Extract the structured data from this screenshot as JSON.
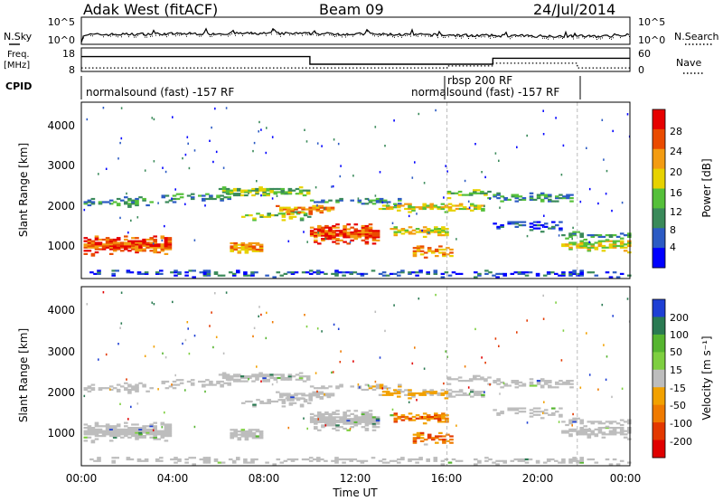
{
  "header": {
    "title": "Adak West (fitACF)",
    "beam": "Beam 09",
    "date": "24/Jul/2014"
  },
  "strip_labels": {
    "nsky": "N.Sky",
    "nsearch": "N.Search",
    "freq": "Freq.",
    "freq_unit": "[MHz]",
    "nave": "Nave",
    "cpid": "CPID"
  },
  "cpid_labels": [
    "normalsound (fast) -157 RF",
    "rbsp 200 RF",
    "normalsound (fast) -157 RF"
  ],
  "chart_data": [
    {
      "type": "line",
      "name": "noise",
      "yticks_left": [
        "10^5",
        "10^0"
      ],
      "yticks_right": [
        "10^5",
        "10^0"
      ]
    },
    {
      "type": "line",
      "name": "freq-nave",
      "yticks_left": [
        "18",
        "8"
      ],
      "yticks_right": [
        "60",
        "0"
      ],
      "freq_series": {
        "x": [
          0,
          10,
          10,
          18,
          18,
          24
        ],
        "y": [
          15,
          15,
          11.2,
          11.2,
          14.2,
          14.2
        ]
      },
      "nave_series": {
        "x": [
          0,
          10,
          10,
          16,
          16,
          18,
          18,
          21.7,
          21.7,
          24
        ],
        "y": [
          8,
          8,
          8,
          8,
          14,
          14,
          22,
          22,
          8,
          8
        ]
      }
    },
    {
      "type": "heatmap",
      "name": "power",
      "ylabel": "Slant Range [km]",
      "yticks": [
        "1000",
        "2000",
        "3000",
        "4000"
      ],
      "ylim": [
        180,
        4600
      ],
      "colorbar_label": "Power [dB]",
      "colorbar_ticks": [
        "4",
        "8",
        "12",
        "16",
        "20",
        "24",
        "28"
      ],
      "colorbar_range": [
        0,
        30
      ],
      "colors": [
        "#0000ff",
        "#2c5bc4",
        "#3a8a5a",
        "#55c03a",
        "#e7d200",
        "#f39c12",
        "#ea4b00",
        "#e60000"
      ]
    },
    {
      "type": "heatmap",
      "name": "velocity",
      "ylabel": "Slant Range [km]",
      "yticks": [
        "1000",
        "2000",
        "3000",
        "4000"
      ],
      "ylim": [
        180,
        4600
      ],
      "colorbar_label": "Velocity [m s⁻¹]",
      "colorbar_ticks": [
        "200",
        "100",
        "50",
        "15",
        "-15",
        "-50",
        "-100",
        "-200"
      ],
      "colors": [
        "#1e3fd4",
        "#2a7a52",
        "#56b530",
        "#7ecf40",
        "#bdbdbd",
        "#f2a100",
        "#ef7a00",
        "#e33800",
        "#e00000"
      ]
    }
  ],
  "x_axis": {
    "label": "Time UT",
    "ticks": [
      "00:00",
      "04:00",
      "08:00",
      "12:00",
      "16:00",
      "20:00",
      "00:00"
    ]
  }
}
